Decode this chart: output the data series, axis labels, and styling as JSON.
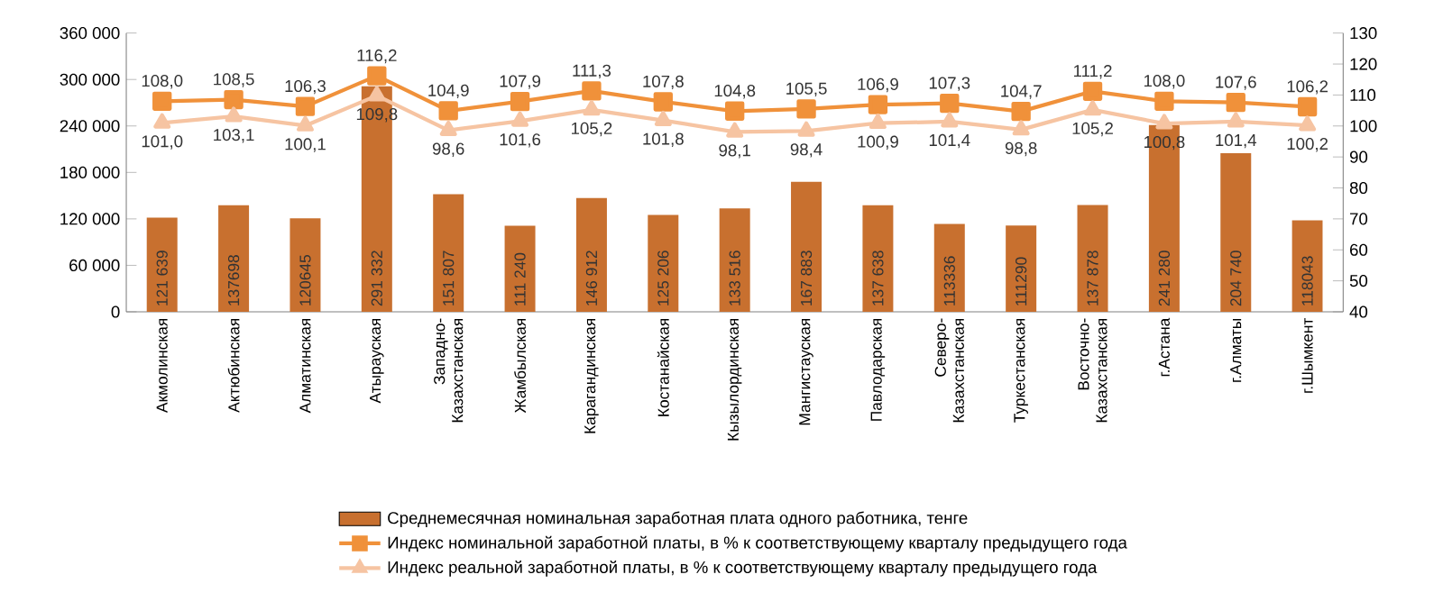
{
  "chart_data": {
    "type": "bar",
    "categories": [
      "Акмолинская",
      "Актюбинская",
      "Алматинская",
      "Атырауская",
      "Западно-Казахстанская",
      "Жамбылская",
      "Карагандинская",
      "Костанайская",
      "Кызылординская",
      "Мангистауская",
      "Павлодарская",
      "Северо-Казахстанская",
      "Туркестанская",
      "Восточно-Казахстанская",
      "г.Астана",
      "г.Алматы",
      "г.Шымкент"
    ],
    "series": [
      {
        "name": "Среднемесячная номинальная заработная плата одного работника, тенге",
        "color": "#c8702f",
        "values": [
          121639,
          137698,
          120645,
          291332,
          151807,
          111240,
          146912,
          125206,
          133516,
          167883,
          137638,
          113336,
          111290,
          137878,
          241280,
          204740,
          118043
        ],
        "value_labels": [
          "121 639",
          "137698",
          "120645",
          "291 332",
          "151 807",
          "111 240",
          "146 912",
          "125 206",
          "133 516",
          "167 883",
          "137 638",
          "113336",
          "111290",
          "137 878",
          "241 280",
          "204 740",
          "118043"
        ]
      },
      {
        "name": "Индекс номинальной заработной платы, в % к соответствующему кварталу предыдущего года",
        "type": "line",
        "axis": "y2",
        "marker": "square",
        "color": "#f0913a",
        "values": [
          108.0,
          108.5,
          106.3,
          116.2,
          104.9,
          107.9,
          111.3,
          107.8,
          104.8,
          105.5,
          106.9,
          107.3,
          104.7,
          111.2,
          108.0,
          107.6,
          106.2
        ],
        "value_labels": [
          "108,0",
          "108,5",
          "106,3",
          "116,2",
          "104,9",
          "107,9",
          "111,3",
          "107,8",
          "104,8",
          "105,5",
          "106,9",
          "107,3",
          "104,7",
          "111,2",
          "108,0",
          "107,6",
          "106,2"
        ]
      },
      {
        "name": "Индекс реальной заработной платы, в % к соответствующему кварталу предыдущего года",
        "type": "line",
        "axis": "y2",
        "marker": "triangle",
        "color": "#f6c4a2",
        "values": [
          101.0,
          103.1,
          100.1,
          109.8,
          98.6,
          101.6,
          105.2,
          101.8,
          98.1,
          98.4,
          100.9,
          101.4,
          98.8,
          105.2,
          100.8,
          101.4,
          100.2
        ],
        "value_labels": [
          "101,0",
          "103,1",
          "100,1",
          "109,8",
          "98,6",
          "101,6",
          "105,2",
          "101,8",
          "98,1",
          "98,4",
          "100,9",
          "101,4",
          "98,8",
          "105,2",
          "100,8",
          "101,4",
          "100,2"
        ]
      }
    ],
    "ylim": [
      0,
      360000
    ],
    "yticks": [
      {
        "value": 0,
        "label": "0"
      },
      {
        "value": 60000,
        "label": "60 000"
      },
      {
        "value": 120000,
        "label": "120 000"
      },
      {
        "value": 180000,
        "label": "180 000"
      },
      {
        "value": 240000,
        "label": "240 000"
      },
      {
        "value": 300000,
        "label": "300 000"
      },
      {
        "value": 360000,
        "label": "360 000"
      }
    ],
    "y2lim": [
      40,
      130
    ],
    "y2ticks": [
      40,
      50,
      60,
      70,
      80,
      90,
      100,
      110,
      120,
      130
    ],
    "line_style": "solid",
    "legend": "bottom"
  }
}
